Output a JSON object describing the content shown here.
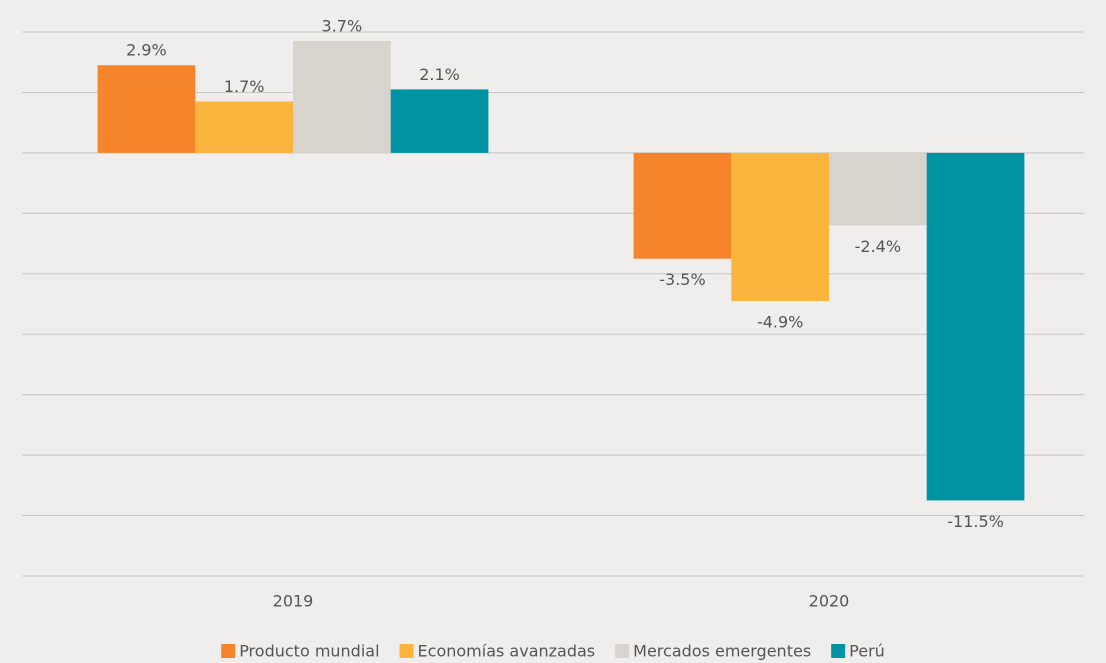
{
  "chart_data": {
    "type": "bar",
    "categories": [
      "2019",
      "2020"
    ],
    "series": [
      {
        "name": "Producto mundial",
        "color": "#f5842a",
        "values": [
          2.9,
          -3.5
        ],
        "value_labels": [
          "2.9%",
          "-3.5%"
        ]
      },
      {
        "name": "Economías avanzadas",
        "color": "#fbb53f",
        "values": [
          1.7,
          -4.9
        ],
        "value_labels": [
          "1.7%",
          "-4.9%"
        ]
      },
      {
        "name": "Mercados emergentes",
        "color": "#d8d3cd",
        "values": [
          3.7,
          -2.4
        ],
        "value_labels": [
          "3.7%",
          "-2.4%"
        ]
      },
      {
        "name": "Perú",
        "color": "#0093a2",
        "values": [
          2.1,
          -11.5
        ],
        "value_labels": [
          "2.1%",
          "-11.5%"
        ]
      }
    ],
    "ylim": [
      -14,
      4
    ],
    "yticks": [
      4,
      2,
      0,
      -2,
      -4,
      -6,
      -8,
      -10,
      -12,
      -14
    ],
    "grid": true,
    "legend": "bottom"
  }
}
